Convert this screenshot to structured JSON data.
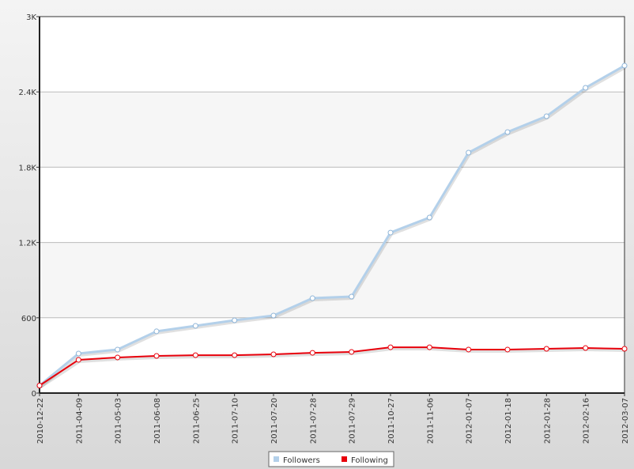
{
  "chart_data": {
    "type": "line",
    "categories": [
      "2010-12-22",
      "2011-04-09",
      "2011-05-03",
      "2011-06-08",
      "2011-06-25",
      "2011-07-10",
      "2011-07-20",
      "2011-07-28",
      "2011-07-29",
      "2011-10-27",
      "2011-11-06",
      "2012-01-07",
      "2012-01-18",
      "2012-01-28",
      "2012-02-16",
      "2012-03-07"
    ],
    "series": [
      {
        "name": "Followers",
        "color": "#b3d0ea",
        "values": [
          60,
          315,
          347,
          492,
          536,
          580,
          618,
          756,
          769,
          1279,
          1399,
          1916,
          2080,
          2206,
          2433,
          2609
        ]
      },
      {
        "name": "Following",
        "color": "#e8000b",
        "values": [
          60,
          265,
          284,
          296,
          302,
          302,
          309,
          321,
          328,
          365,
          365,
          347,
          347,
          353,
          359,
          353
        ]
      }
    ],
    "ylim": [
      0,
      3000
    ],
    "yticks": [
      0,
      600,
      {
        "value": 1200,
        "label": "1.2K"
      },
      {
        "value": 1800,
        "label": "1.8K"
      },
      {
        "value": 2400,
        "label": "2.4K"
      },
      {
        "value": 3000,
        "label": "3K"
      }
    ],
    "grid": true,
    "legend": "bottom"
  }
}
